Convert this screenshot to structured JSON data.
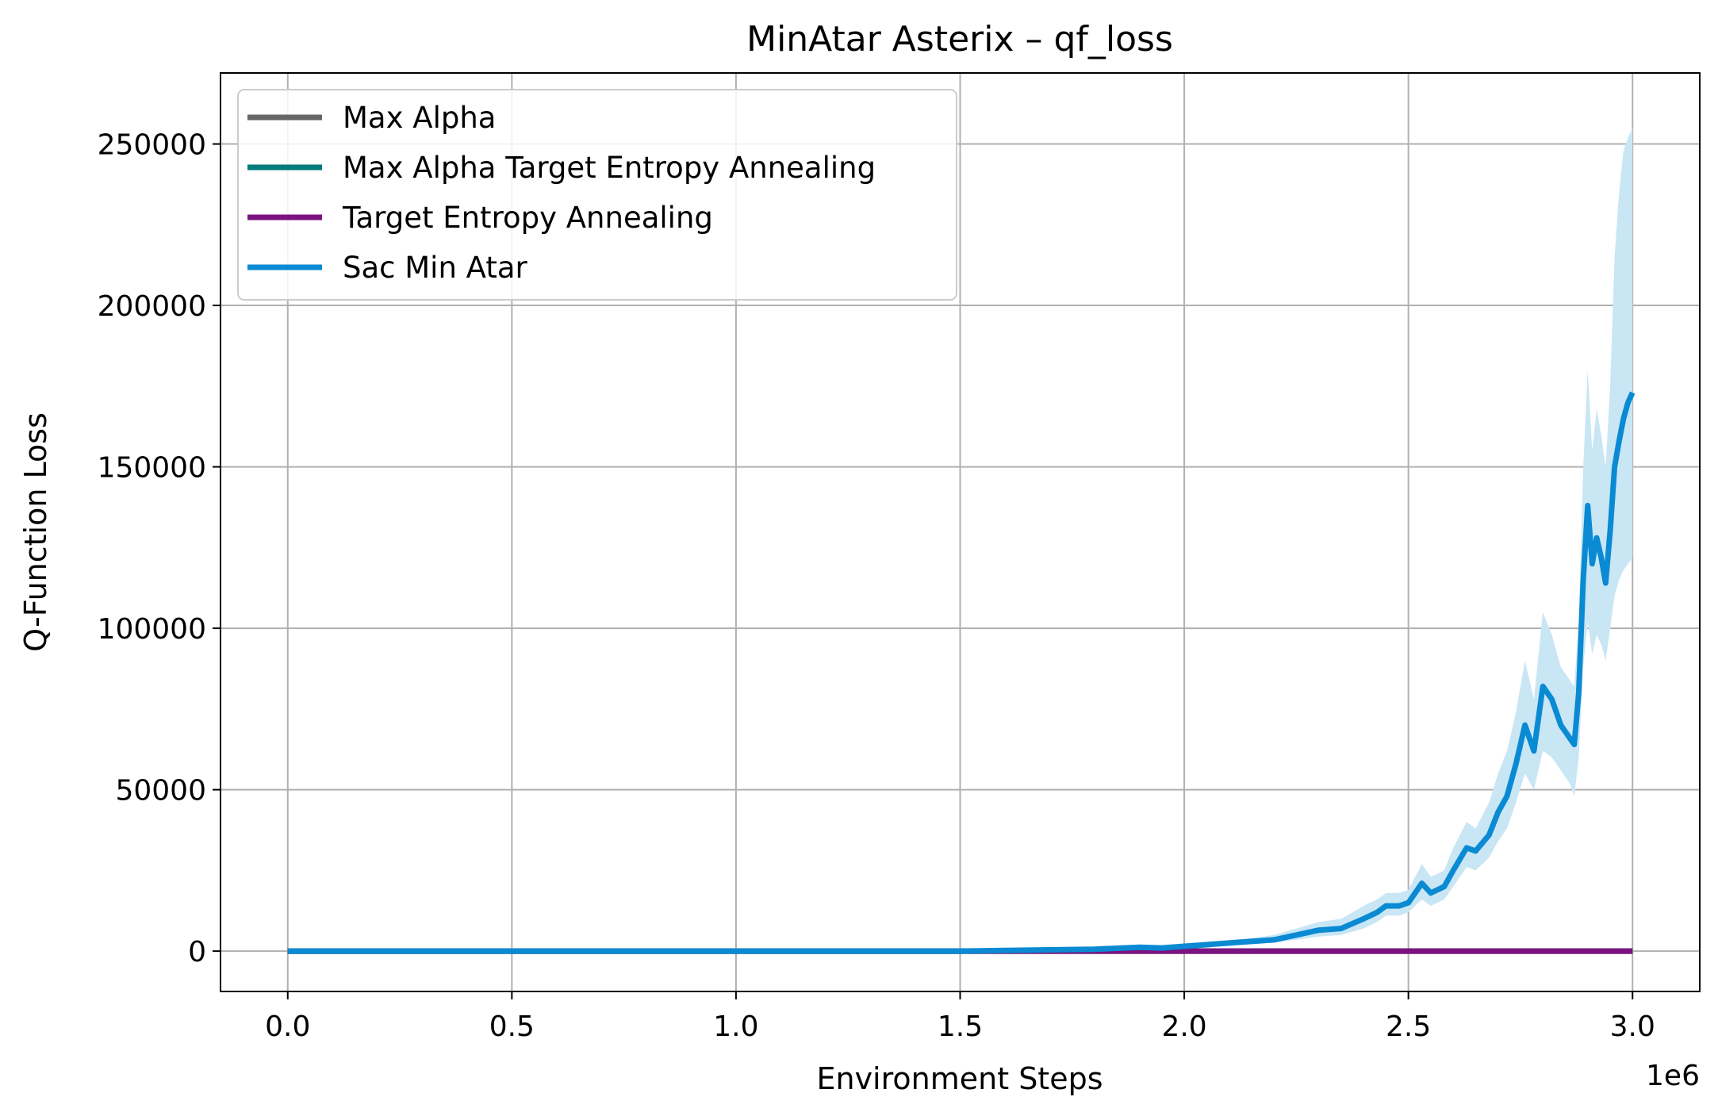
{
  "chart_data": {
    "type": "line",
    "title": "MinAtar Asterix – qf_loss",
    "xlabel": "Environment Steps",
    "ylabel": "Q-Function Loss",
    "x_offset_text": "1e6",
    "xlim": [
      -0.15,
      3.15
    ],
    "ylim": [
      -12500,
      272000
    ],
    "x_ticks": [
      0.0,
      0.5,
      1.0,
      1.5,
      2.0,
      2.5,
      3.0
    ],
    "x_tick_labels": [
      "0.0",
      "0.5",
      "1.0",
      "1.5",
      "2.0",
      "2.5",
      "3.0"
    ],
    "y_ticks": [
      0,
      50000,
      100000,
      150000,
      200000,
      250000
    ],
    "y_tick_labels": [
      "0",
      "50000",
      "100000",
      "150000",
      "200000",
      "250000"
    ],
    "grid": true,
    "legend_position": "top-left",
    "series": [
      {
        "name": "Max Alpha",
        "color": "#666666",
        "x": [
          0.0,
          3.0
        ],
        "y": [
          0,
          0
        ]
      },
      {
        "name": "Max Alpha Target Entropy Annealing",
        "color": "#007a7a",
        "x": [
          0.0,
          3.0
        ],
        "y": [
          0,
          0
        ]
      },
      {
        "name": "Target Entropy Annealing",
        "color": "#7b1480",
        "x": [
          0.0,
          3.0
        ],
        "y": [
          0,
          0
        ]
      },
      {
        "name": "Sac Min Atar",
        "color": "#0a8ad3",
        "band_color": "#c9e6f5",
        "x": [
          0.0,
          1.5,
          1.6,
          1.7,
          1.8,
          1.85,
          1.9,
          1.95,
          2.0,
          2.05,
          2.1,
          2.15,
          2.2,
          2.25,
          2.3,
          2.35,
          2.4,
          2.43,
          2.45,
          2.48,
          2.5,
          2.53,
          2.55,
          2.58,
          2.6,
          2.63,
          2.65,
          2.68,
          2.7,
          2.72,
          2.74,
          2.76,
          2.78,
          2.8,
          2.82,
          2.84,
          2.86,
          2.87,
          2.88,
          2.89,
          2.9,
          2.91,
          2.92,
          2.93,
          2.94,
          2.95,
          2.96,
          2.97,
          2.98,
          2.99,
          3.0
        ],
        "y": [
          0,
          0,
          200,
          400,
          600,
          900,
          1200,
          1000,
          1500,
          2000,
          2500,
          3000,
          3500,
          5000,
          6500,
          7000,
          10000,
          12000,
          14000,
          14000,
          15000,
          21000,
          18000,
          20000,
          25000,
          32000,
          31000,
          36000,
          43000,
          48000,
          58000,
          70000,
          62000,
          82000,
          78000,
          70000,
          66000,
          64000,
          80000,
          115000,
          138000,
          120000,
          128000,
          122000,
          114000,
          130000,
          150000,
          158000,
          165000,
          170000,
          173000
        ],
        "y_lower": [
          0,
          0,
          100,
          200,
          400,
          600,
          800,
          700,
          1000,
          1400,
          1800,
          2200,
          2600,
          3500,
          4500,
          5000,
          7000,
          9000,
          11000,
          11000,
          12000,
          16000,
          14000,
          16000,
          20000,
          26000,
          25000,
          29000,
          34000,
          38000,
          46000,
          55000,
          50000,
          62000,
          60000,
          56000,
          52000,
          48000,
          60000,
          88000,
          102000,
          92000,
          98000,
          95000,
          90000,
          100000,
          110000,
          115000,
          118000,
          120000,
          122000
        ],
        "y_upper": [
          0,
          0,
          300,
          600,
          900,
          1300,
          1700,
          1400,
          2200,
          2800,
          3400,
          4000,
          5000,
          7000,
          9000,
          10000,
          14000,
          16000,
          18000,
          18000,
          19000,
          27000,
          23000,
          25000,
          32000,
          40000,
          38000,
          46000,
          55000,
          62000,
          74000,
          90000,
          78000,
          105000,
          98000,
          88000,
          84000,
          82000,
          102000,
          150000,
          180000,
          155000,
          168000,
          160000,
          150000,
          175000,
          215000,
          235000,
          248000,
          252000,
          255000
        ]
      }
    ]
  }
}
